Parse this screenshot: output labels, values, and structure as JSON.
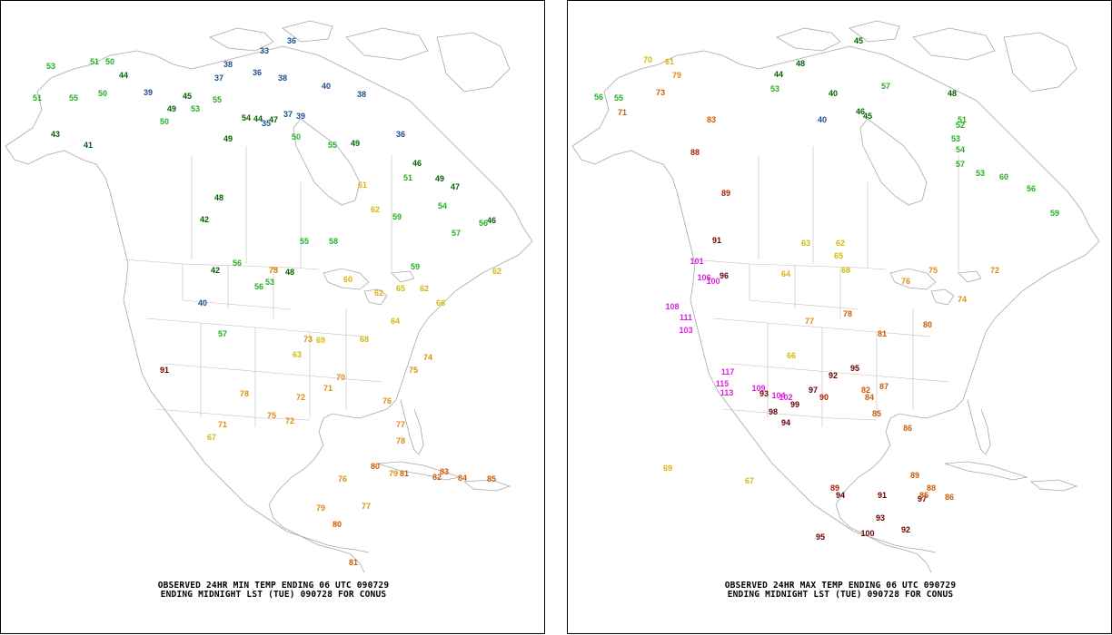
{
  "panels": {
    "min": {
      "caption_line1": "OBSERVED 24HR MIN TEMP ENDING 06 UTC 090729",
      "caption_line2": "ENDING MIDNIGHT LST (TUE) 090728 FOR CONUS"
    },
    "max": {
      "caption_line1": "OBSERVED 24HR MAX TEMP ENDING 06 UTC 090729",
      "caption_line2": "ENDING MIDNIGHT LST (TUE) 090728 FOR CONUS"
    }
  },
  "colors": {
    "cold_blue": "#1f4e8c",
    "dark_green": "#006400",
    "green": "#22b022",
    "yellow": "#d4b80a",
    "orange": "#e08a10",
    "dark_orange": "#d05a00",
    "red_brown": "#b02000",
    "maroon": "#6b0000",
    "magenta": "#e020e0",
    "map_lines": "#a8a8a8"
  },
  "stations_min": [
    {
      "v": "51",
      "c": "green"
    },
    {
      "v": "50",
      "c": "green"
    },
    {
      "v": "53",
      "c": "green"
    },
    {
      "v": "44",
      "c": "dark_green"
    },
    {
      "v": "51",
      "c": "green"
    },
    {
      "v": "55",
      "c": "green"
    },
    {
      "v": "50",
      "c": "green"
    },
    {
      "v": "39",
      "c": "cold_blue"
    },
    {
      "v": "33",
      "c": "cold_blue"
    },
    {
      "v": "36",
      "c": "cold_blue"
    },
    {
      "v": "38",
      "c": "cold_blue"
    },
    {
      "v": "36",
      "c": "cold_blue"
    },
    {
      "v": "38",
      "c": "cold_blue"
    },
    {
      "v": "37",
      "c": "cold_blue"
    },
    {
      "v": "40",
      "c": "cold_blue"
    },
    {
      "v": "38",
      "c": "cold_blue"
    },
    {
      "v": "37",
      "c": "cold_blue"
    },
    {
      "v": "39",
      "c": "cold_blue"
    },
    {
      "v": "35",
      "c": "cold_blue"
    },
    {
      "v": "36",
      "c": "cold_blue"
    },
    {
      "v": "49",
      "c": "dark_green"
    },
    {
      "v": "50",
      "c": "green"
    },
    {
      "v": "53",
      "c": "green"
    },
    {
      "v": "45",
      "c": "dark_green"
    },
    {
      "v": "55",
      "c": "green"
    },
    {
      "v": "49",
      "c": "dark_green"
    },
    {
      "v": "54",
      "c": "dark_green"
    },
    {
      "v": "44",
      "c": "dark_green"
    },
    {
      "v": "47",
      "c": "dark_green"
    },
    {
      "v": "50",
      "c": "green"
    },
    {
      "v": "55",
      "c": "green"
    },
    {
      "v": "49",
      "c": "dark_green"
    },
    {
      "v": "48",
      "c": "dark_green"
    },
    {
      "v": "43",
      "c": "dark_green"
    },
    {
      "v": "41",
      "c": "dark_green"
    },
    {
      "v": "42",
      "c": "dark_green"
    },
    {
      "v": "46",
      "c": "dark_green"
    },
    {
      "v": "49",
      "c": "dark_green"
    },
    {
      "v": "51",
      "c": "green"
    },
    {
      "v": "47",
      "c": "dark_green"
    },
    {
      "v": "46",
      "c": "dark_green"
    },
    {
      "v": "61",
      "c": "yellow"
    },
    {
      "v": "62",
      "c": "yellow"
    },
    {
      "v": "59",
      "c": "green"
    },
    {
      "v": "54",
      "c": "green"
    },
    {
      "v": "57",
      "c": "green"
    },
    {
      "v": "56",
      "c": "green"
    },
    {
      "v": "62",
      "c": "yellow"
    },
    {
      "v": "55",
      "c": "green"
    },
    {
      "v": "48",
      "c": "dark_green"
    },
    {
      "v": "53",
      "c": "green"
    },
    {
      "v": "56",
      "c": "green"
    },
    {
      "v": "58",
      "c": "green"
    },
    {
      "v": "60",
      "c": "yellow"
    },
    {
      "v": "62",
      "c": "yellow"
    },
    {
      "v": "65",
      "c": "yellow"
    },
    {
      "v": "59",
      "c": "green"
    },
    {
      "v": "62",
      "c": "yellow"
    },
    {
      "v": "66",
      "c": "yellow"
    },
    {
      "v": "64",
      "c": "yellow"
    },
    {
      "v": "68",
      "c": "yellow"
    },
    {
      "v": "70",
      "c": "orange"
    },
    {
      "v": "72",
      "c": "orange"
    },
    {
      "v": "71",
      "c": "orange"
    },
    {
      "v": "73",
      "c": "orange"
    },
    {
      "v": "75",
      "c": "orange"
    },
    {
      "v": "74",
      "c": "orange"
    },
    {
      "v": "76",
      "c": "orange"
    },
    {
      "v": "77",
      "c": "orange"
    },
    {
      "v": "78",
      "c": "orange"
    },
    {
      "v": "79",
      "c": "orange"
    },
    {
      "v": "80",
      "c": "dark_orange"
    },
    {
      "v": "81",
      "c": "dark_orange"
    },
    {
      "v": "82",
      "c": "dark_orange"
    },
    {
      "v": "83",
      "c": "dark_orange"
    },
    {
      "v": "84",
      "c": "dark_orange"
    },
    {
      "v": "85",
      "c": "dark_orange"
    },
    {
      "v": "91",
      "c": "maroon"
    },
    {
      "v": "40",
      "c": "cold_blue"
    },
    {
      "v": "42",
      "c": "dark_green"
    },
    {
      "v": "56",
      "c": "green"
    },
    {
      "v": "57",
      "c": "green"
    },
    {
      "v": "63",
      "c": "yellow"
    },
    {
      "v": "69",
      "c": "yellow"
    },
    {
      "v": "67",
      "c": "yellow"
    },
    {
      "v": "71",
      "c": "orange"
    },
    {
      "v": "78",
      "c": "orange"
    },
    {
      "v": "75",
      "c": "orange"
    },
    {
      "v": "72",
      "c": "orange"
    },
    {
      "v": "76",
      "c": "orange"
    },
    {
      "v": "79",
      "c": "orange"
    },
    {
      "v": "81",
      "c": "dark_orange"
    },
    {
      "v": "80",
      "c": "dark_orange"
    },
    {
      "v": "77",
      "c": "orange"
    },
    {
      "v": "75",
      "c": "orange"
    },
    {
      "v": "73",
      "c": "orange"
    }
  ],
  "stations_max": [
    {
      "v": "45",
      "c": "dark_green"
    },
    {
      "v": "40",
      "c": "dark_green"
    },
    {
      "v": "48",
      "c": "dark_green"
    },
    {
      "v": "44",
      "c": "dark_green"
    },
    {
      "v": "53",
      "c": "green"
    },
    {
      "v": "57",
      "c": "green"
    },
    {
      "v": "48",
      "c": "dark_green"
    },
    {
      "v": "56",
      "c": "green"
    },
    {
      "v": "55",
      "c": "green"
    },
    {
      "v": "51",
      "c": "green"
    },
    {
      "v": "52",
      "c": "green"
    },
    {
      "v": "53",
      "c": "green"
    },
    {
      "v": "54",
      "c": "green"
    },
    {
      "v": "57",
      "c": "green"
    },
    {
      "v": "60",
      "c": "green"
    },
    {
      "v": "56",
      "c": "green"
    },
    {
      "v": "53",
      "c": "green"
    },
    {
      "v": "59",
      "c": "green"
    },
    {
      "v": "40",
      "c": "cold_blue"
    },
    {
      "v": "46",
      "c": "dark_green"
    },
    {
      "v": "45",
      "c": "dark_green"
    },
    {
      "v": "61",
      "c": "yellow"
    },
    {
      "v": "70",
      "c": "yellow"
    },
    {
      "v": "79",
      "c": "orange"
    },
    {
      "v": "73",
      "c": "dark_orange"
    },
    {
      "v": "71",
      "c": "dark_orange"
    },
    {
      "v": "83",
      "c": "dark_orange"
    },
    {
      "v": "88",
      "c": "red_brown"
    },
    {
      "v": "89",
      "c": "red_brown"
    },
    {
      "v": "91",
      "c": "maroon"
    },
    {
      "v": "96",
      "c": "maroon"
    },
    {
      "v": "100",
      "c": "magenta"
    },
    {
      "v": "101",
      "c": "magenta"
    },
    {
      "v": "106",
      "c": "magenta"
    },
    {
      "v": "108",
      "c": "magenta"
    },
    {
      "v": "111",
      "c": "magenta"
    },
    {
      "v": "103",
      "c": "magenta"
    },
    {
      "v": "117",
      "c": "magenta"
    },
    {
      "v": "115",
      "c": "magenta"
    },
    {
      "v": "113",
      "c": "magenta"
    },
    {
      "v": "109",
      "c": "magenta"
    },
    {
      "v": "104",
      "c": "magenta"
    },
    {
      "v": "102",
      "c": "magenta"
    },
    {
      "v": "99",
      "c": "maroon"
    },
    {
      "v": "97",
      "c": "maroon"
    },
    {
      "v": "93",
      "c": "maroon"
    },
    {
      "v": "92",
      "c": "maroon"
    },
    {
      "v": "95",
      "c": "maroon"
    },
    {
      "v": "94",
      "c": "maroon"
    },
    {
      "v": "98",
      "c": "maroon"
    },
    {
      "v": "90",
      "c": "red_brown"
    },
    {
      "v": "87",
      "c": "dark_orange"
    },
    {
      "v": "86",
      "c": "dark_orange"
    },
    {
      "v": "85",
      "c": "dark_orange"
    },
    {
      "v": "84",
      "c": "dark_orange"
    },
    {
      "v": "82",
      "c": "dark_orange"
    },
    {
      "v": "81",
      "c": "dark_orange"
    },
    {
      "v": "80",
      "c": "dark_orange"
    },
    {
      "v": "78",
      "c": "dark_orange"
    },
    {
      "v": "77",
      "c": "orange"
    },
    {
      "v": "76",
      "c": "orange"
    },
    {
      "v": "75",
      "c": "orange"
    },
    {
      "v": "74",
      "c": "orange"
    },
    {
      "v": "72",
      "c": "orange"
    },
    {
      "v": "65",
      "c": "yellow"
    },
    {
      "v": "64",
      "c": "yellow"
    },
    {
      "v": "66",
      "c": "yellow"
    },
    {
      "v": "63",
      "c": "yellow"
    },
    {
      "v": "62",
      "c": "yellow"
    },
    {
      "v": "68",
      "c": "yellow"
    },
    {
      "v": "69",
      "c": "yellow"
    },
    {
      "v": "67",
      "c": "yellow"
    },
    {
      "v": "89",
      "c": "red_brown"
    },
    {
      "v": "91",
      "c": "maroon"
    },
    {
      "v": "93",
      "c": "maroon"
    },
    {
      "v": "100",
      "c": "maroon"
    },
    {
      "v": "95",
      "c": "maroon"
    },
    {
      "v": "94",
      "c": "maroon"
    },
    {
      "v": "97",
      "c": "maroon"
    },
    {
      "v": "92",
      "c": "maroon"
    },
    {
      "v": "86",
      "c": "dark_orange"
    },
    {
      "v": "85",
      "c": "dark_orange"
    },
    {
      "v": "89",
      "c": "dark_orange"
    },
    {
      "v": "88",
      "c": "dark_orange"
    }
  ]
}
